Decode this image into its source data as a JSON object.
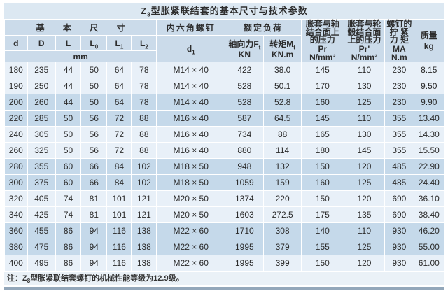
{
  "title": {
    "prefix": "Z",
    "sub": "8",
    "rest": "型胀紧联结套的基本尺寸与技术参数"
  },
  "header": {
    "group_basic": "基本尺寸",
    "group_screw": "内六角螺钉",
    "group_load": "额定负荷",
    "unit_mm": "mm",
    "dims": [
      {
        "base": "d",
        "sub": ""
      },
      {
        "base": "D",
        "sub": ""
      },
      {
        "base": "L",
        "sub": ""
      },
      {
        "base": "L",
        "sub": "0"
      },
      {
        "base": "L",
        "sub": "1"
      },
      {
        "base": "L",
        "sub": "2"
      }
    ],
    "d1": {
      "base": "d",
      "sub": "1"
    },
    "axial": {
      "base": "轴向力F",
      "sub": "t",
      "unit": "KN"
    },
    "torque": {
      "base": "转矩M",
      "sub": "t",
      "unit": "KN.m"
    },
    "pr_shaft": {
      "line1": "胀套与轴",
      "line2": "结合面上",
      "line3": "的压力",
      "sym": "Pr",
      "unit": "N/mm²"
    },
    "pr_hub": {
      "line1": "胀套与轮",
      "line2": "毂结合面",
      "line3": "上的压力",
      "sym": "Pr'",
      "unit": "N/mm²"
    },
    "ma": {
      "line1": "螺钉的",
      "line2": "拧 紧",
      "line3": "力 矩",
      "sym": "MA",
      "unit": "N.m"
    },
    "mass": {
      "line1": "质量",
      "unit": "kg"
    }
  },
  "table": {
    "column_keys": [
      "d",
      "D",
      "L",
      "L0",
      "L1",
      "L2",
      "d1",
      "axial_force_Ft_KN",
      "torque_Mt_KNm",
      "pressure_shaft_Pr_Nmm2",
      "pressure_hub_Pr_Nmm2",
      "tightening_torque_MA_Nm",
      "mass_kg"
    ],
    "rows": [
      [
        "180",
        "235",
        "44",
        "50",
        "64",
        "78",
        "M14 × 40",
        "422",
        "38.0",
        "145",
        "110",
        "230",
        "8.15"
      ],
      [
        "190",
        "250",
        "44",
        "50",
        "64",
        "78",
        "M14 × 40",
        "528",
        "50.1",
        "170",
        "130",
        "230",
        "9.50"
      ],
      [
        "200",
        "260",
        "44",
        "50",
        "64",
        "78",
        "M14 × 40",
        "528",
        "52.8",
        "160",
        "125",
        "230",
        "9.90"
      ],
      [
        "220",
        "285",
        "50",
        "56",
        "72",
        "88",
        "M16 × 40",
        "587",
        "64.5",
        "145",
        "110",
        "355",
        "13.40"
      ],
      [
        "240",
        "305",
        "50",
        "56",
        "72",
        "88",
        "M16 × 40",
        "734",
        "88",
        "165",
        "130",
        "355",
        "14.30"
      ],
      [
        "260",
        "325",
        "50",
        "56",
        "72",
        "88",
        "M16 × 40",
        "880",
        "114",
        "180",
        "145",
        "355",
        "15.50"
      ],
      [
        "280",
        "355",
        "60",
        "66",
        "84",
        "102",
        "M18 × 50",
        "948",
        "132",
        "150",
        "120",
        "485",
        "22.90"
      ],
      [
        "300",
        "375",
        "60",
        "66",
        "84",
        "102",
        "M18 × 50",
        "1059",
        "159",
        "160",
        "125",
        "485",
        "24.40"
      ],
      [
        "320",
        "405",
        "74",
        "81",
        "101",
        "121",
        "M20 × 50",
        "1374",
        "220",
        "150",
        "120",
        "690",
        "36.10"
      ],
      [
        "340",
        "425",
        "74",
        "81",
        "101",
        "121",
        "M20 × 50",
        "1603",
        "272.5",
        "175",
        "135",
        "690",
        "38.40"
      ],
      [
        "360",
        "455",
        "86",
        "94",
        "116",
        "138",
        "M22 × 60",
        "1710",
        "308",
        "140",
        "110",
        "930",
        "46.20"
      ],
      [
        "380",
        "475",
        "86",
        "94",
        "116",
        "138",
        "M22 × 60",
        "1995",
        "379",
        "155",
        "125",
        "930",
        "55.00"
      ],
      [
        "400",
        "495",
        "86",
        "94",
        "116",
        "138",
        "M22 × 60",
        "1995",
        "399",
        "150",
        "120",
        "930",
        "61.00"
      ]
    ]
  },
  "note": {
    "prefix": "注：Z",
    "sub": "8",
    "rest": "型胀紧联结套螺钉的机械性能等级为12.9级。"
  },
  "colors": {
    "title_bg": "#dce8f2",
    "header_bg": "#cbdbea",
    "row_light": "#e8f0f8",
    "row_dark": "#c5d9ea",
    "note_bg": "#eaf1f7",
    "bottom_strip": "#93a7ba",
    "separator": "#ffffff",
    "text": "#2b2b2b"
  }
}
